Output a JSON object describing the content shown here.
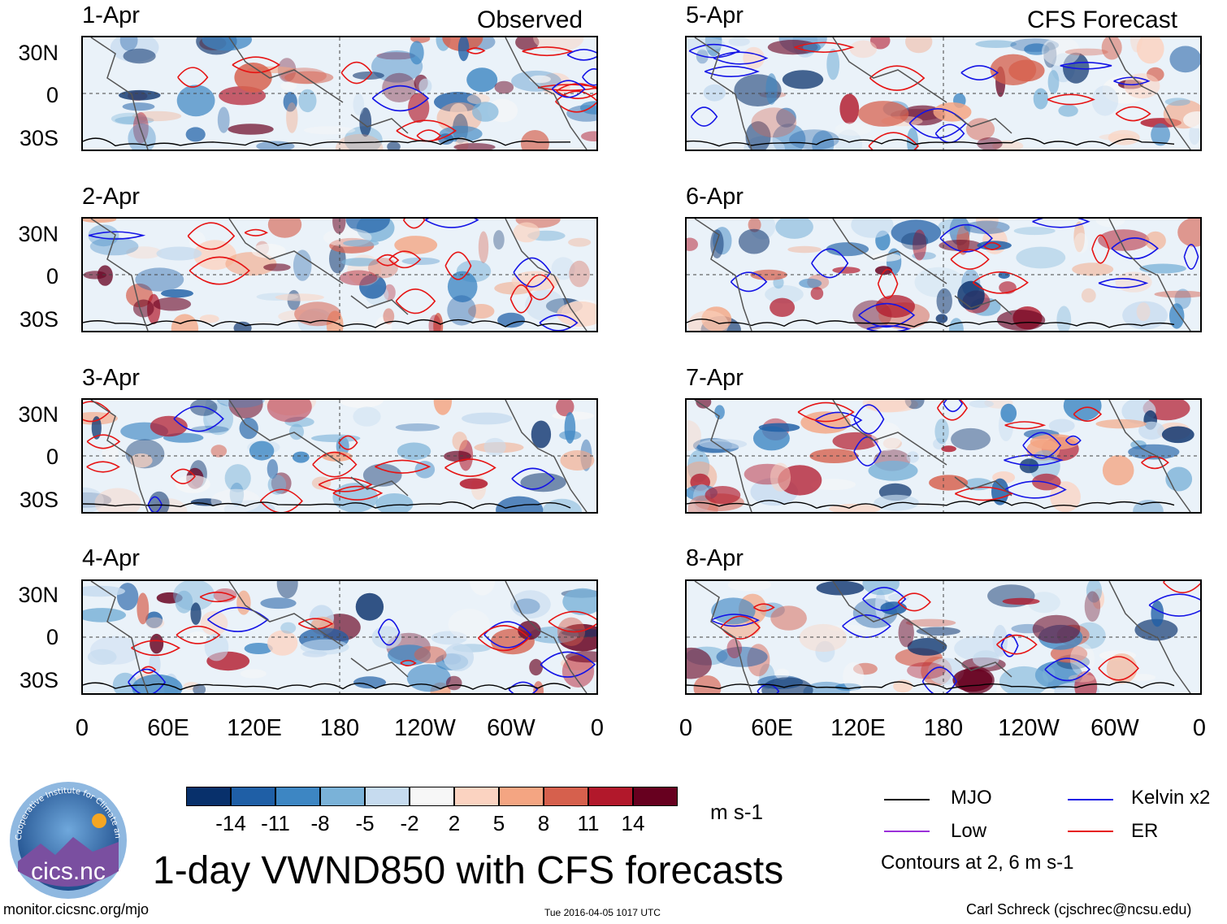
{
  "observed_label": "Observed",
  "forecast_label": "CFS Forecast",
  "observed_panels": [
    {
      "date": "1-Apr"
    },
    {
      "date": "2-Apr"
    },
    {
      "date": "3-Apr"
    },
    {
      "date": "4-Apr"
    }
  ],
  "forecast_panels": [
    {
      "date": "5-Apr"
    },
    {
      "date": "6-Apr"
    },
    {
      "date": "7-Apr"
    },
    {
      "date": "8-Apr"
    }
  ],
  "lat_labels": [
    "30N",
    "0",
    "30S"
  ],
  "lon_labels": [
    "0",
    "60E",
    "120E",
    "180",
    "120W",
    "60W",
    "0"
  ],
  "colorbar": {
    "colors": [
      "#08306b",
      "#1f5fa6",
      "#3d86c3",
      "#7ab2d8",
      "#c6dbef",
      "#f7f7f7",
      "#fbd3c1",
      "#f4a582",
      "#d6604d",
      "#b2182b",
      "#67001f"
    ],
    "ticks": [
      "-14",
      "-11",
      "-8",
      "-5",
      "-2",
      "2",
      "5",
      "8",
      "11",
      "14"
    ],
    "units": "m s-1"
  },
  "legend": {
    "mjo": {
      "label": "MJO",
      "color": "#000000"
    },
    "kelvin": {
      "label": "Kelvin x2",
      "color": "#1414e6"
    },
    "low": {
      "label": "Low",
      "color": "#9b30d9"
    },
    "er": {
      "label": "ER",
      "color": "#e61414"
    },
    "note": "Contours at 2, 6 m s-1"
  },
  "logo": {
    "text": "cics.nc",
    "ring_text": "Cooperative Institute for Climate and Satellites"
  },
  "title": "1-day VWND850 with CFS forecasts",
  "footer": {
    "left": "monitor.cicsnc.org/mjo",
    "center": "Tue 2016-04-05 1017 UTC",
    "right": "Carl Schreck (cjschrec@ncsu.edu)"
  }
}
